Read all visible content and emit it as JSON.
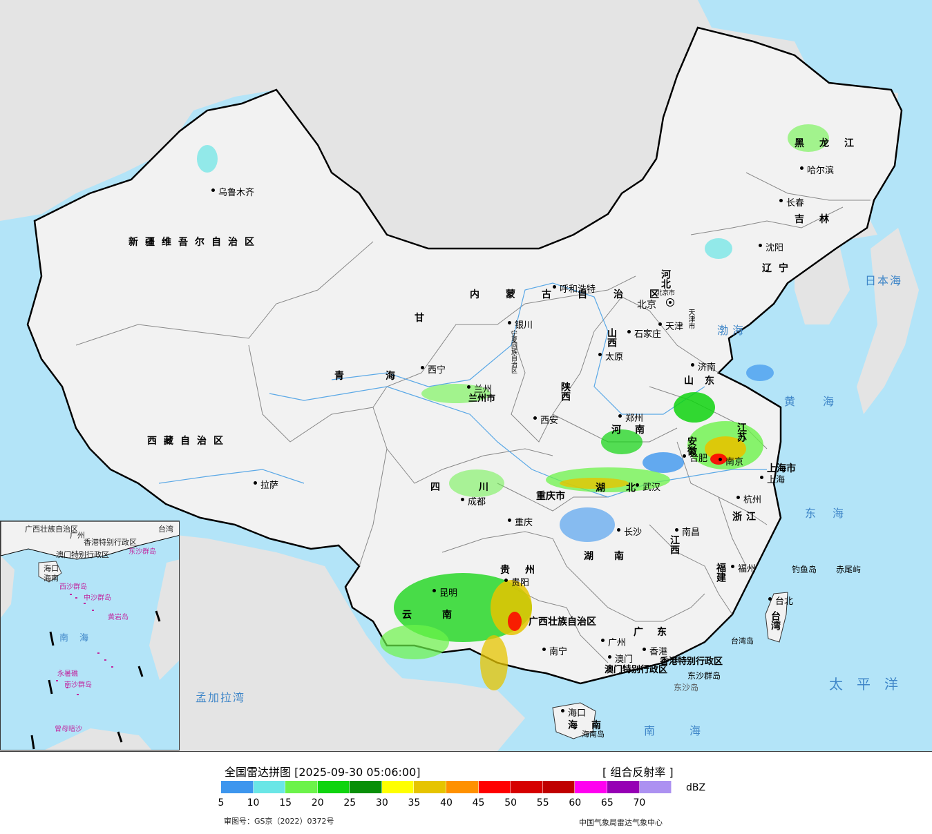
{
  "legend": {
    "title": "全国雷达拼图 [2025-09-30 05:06:00]",
    "product": "[ 组合反射率 ]",
    "unit": "dBZ",
    "approval": "审图号：GS京（2022）0372号",
    "credit": "中国气象局雷达气象中心",
    "colors": [
      "#3d96ee",
      "#6ae6e6",
      "#6cf34a",
      "#0fd40f",
      "#088f08",
      "#ffff00",
      "#e6c400",
      "#ff9100",
      "#ff0000",
      "#d60000",
      "#c00000",
      "#ff00f0",
      "#9600b4",
      "#ac91f1"
    ],
    "ticks": [
      "5",
      "10",
      "15",
      "20",
      "25",
      "30",
      "35",
      "40",
      "45",
      "50",
      "55",
      "60",
      "65",
      "70"
    ]
  },
  "map": {
    "colors": {
      "sea": "#b3e4f8",
      "land": "#f2f2f2",
      "foreign": "#e4e4e4",
      "border": "#000000",
      "river": "#5aa8e6",
      "sea_label": "#3f86c8"
    },
    "capital": "北京",
    "cities": [
      "乌鲁木齐",
      "拉萨",
      "西宁",
      "兰州",
      "银川",
      "呼和浩特",
      "西安",
      "成都",
      "重庆",
      "昆明",
      "贵阳",
      "南宁",
      "长沙",
      "武汉",
      "南昌",
      "合肥",
      "南京",
      "上海",
      "杭州",
      "福州",
      "台北",
      "广州",
      "香港",
      "澳门",
      "海口",
      "郑州",
      "济南",
      "石家庄",
      "太原",
      "天津",
      "沈阳",
      "长春",
      "哈尔滨"
    ],
    "provinces": [
      "新疆维吾尔自治区",
      "西藏自治区",
      "青海",
      "甘",
      "内蒙古自治区",
      "四川",
      "重庆市",
      "云南",
      "贵州",
      "湖北",
      "湖南",
      "广西壮族自治区",
      "广东",
      "海南",
      "江西",
      "福建",
      "浙江",
      "江苏",
      "安徽",
      "河南",
      "山东",
      "河北",
      "山西",
      "陕西",
      "辽宁",
      "吉林",
      "黑龙江",
      "宁夏回族自治区",
      "台湾",
      "北京市",
      "天津市",
      "上海市",
      "香港特别行政区",
      "澳门特别行政区",
      "兰州市"
    ],
    "seas": [
      "日本海",
      "渤海",
      "黄海",
      "东海",
      "太平洋",
      "南海",
      "孟加拉湾"
    ],
    "islands": [
      "钓鱼岛",
      "赤尾屿",
      "台湾岛",
      "海南岛",
      "东沙群岛",
      "东沙岛"
    ]
  },
  "inset": {
    "labels": [
      "广西壮族自治区",
      "广州",
      "香港特别行政区",
      "澳门特别行政区",
      "东沙群岛",
      "海口",
      "海南",
      "西沙群岛",
      "中沙群岛",
      "黄岩岛",
      "南海",
      "永暑礁",
      "南沙群岛",
      "曾母暗沙",
      "台湾"
    ]
  }
}
